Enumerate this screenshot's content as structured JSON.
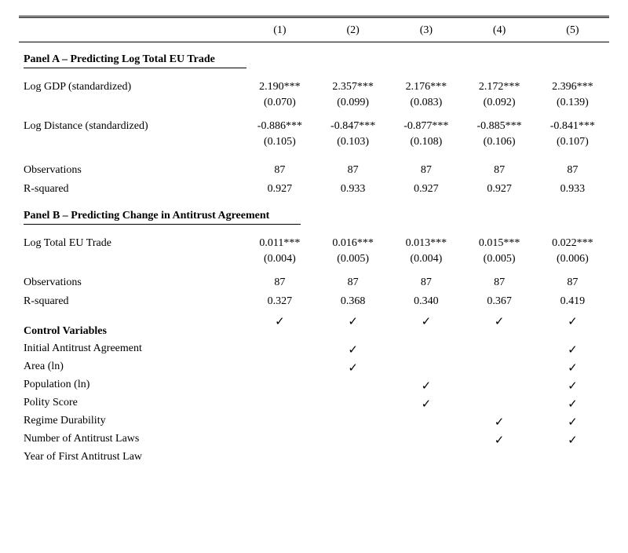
{
  "columns": {
    "c1": "(1)",
    "c2": "(2)",
    "c3": "(3)",
    "c4": "(4)",
    "c5": "(5)"
  },
  "panelA": {
    "title": "Panel A – Predicting Log Total EU Trade",
    "row1": {
      "label": "Log GDP (standardized)",
      "v1": "2.190***",
      "se1": "(0.070)",
      "v2": "2.357***",
      "se2": "(0.099)",
      "v3": "2.176***",
      "se3": "(0.083)",
      "v4": "2.172***",
      "se4": "(0.092)",
      "v5": "2.396***",
      "se5": "(0.139)"
    },
    "row2": {
      "label": "Log Distance (standardized)",
      "v1": "-0.886***",
      "se1": "(0.105)",
      "v2": "-0.847***",
      "se2": "(0.103)",
      "v3": "-0.877***",
      "se3": "(0.108)",
      "v4": "-0.885***",
      "se4": "(0.106)",
      "v5": "-0.841***",
      "se5": "(0.107)"
    },
    "obs": {
      "label": "Observations",
      "v1": "87",
      "v2": "87",
      "v3": "87",
      "v4": "87",
      "v5": "87"
    },
    "r2": {
      "label": "R-squared",
      "v1": "0.927",
      "v2": "0.933",
      "v3": "0.927",
      "v4": "0.927",
      "v5": "0.933"
    }
  },
  "panelB": {
    "title": "Panel B – Predicting Change in Antitrust Agreement",
    "row1": {
      "label": "Log Total EU Trade",
      "v1": "0.011***",
      "se1": "(0.004)",
      "v2": "0.016***",
      "se2": "(0.005)",
      "v3": "0.013***",
      "se3": "(0.004)",
      "v4": "0.015***",
      "se4": "(0.005)",
      "v5": "0.022***",
      "se5": "(0.006)"
    },
    "obs": {
      "label": "Observations",
      "v1": "87",
      "v2": "87",
      "v3": "87",
      "v4": "87",
      "v5": "87"
    },
    "r2": {
      "label": "R-squared",
      "v1": "0.327",
      "v2": "0.368",
      "v3": "0.340",
      "v4": "0.367",
      "v5": "0.419"
    }
  },
  "cv": {
    "title": "Control Variables",
    "check": "✓",
    "rows": {
      "r1": {
        "label": "Initial Antitrust Agreement",
        "c1": true,
        "c2": true,
        "c3": true,
        "c4": true,
        "c5": true
      },
      "r2": {
        "label": "Area (ln)",
        "c1": false,
        "c2": true,
        "c3": false,
        "c4": false,
        "c5": true
      },
      "r3": {
        "label": "Population (ln)",
        "c1": false,
        "c2": true,
        "c3": false,
        "c4": false,
        "c5": true
      },
      "r4": {
        "label": "Polity Score",
        "c1": false,
        "c2": false,
        "c3": true,
        "c4": false,
        "c5": true
      },
      "r5": {
        "label": "Regime Durability",
        "c1": false,
        "c2": false,
        "c3": true,
        "c4": false,
        "c5": true
      },
      "r6": {
        "label": "Number of Antitrust Laws",
        "c1": false,
        "c2": false,
        "c3": false,
        "c4": true,
        "c5": true
      },
      "r7": {
        "label": "Year of First Antitrust Law",
        "c1": false,
        "c2": false,
        "c3": false,
        "c4": true,
        "c5": true
      }
    }
  },
  "colors": {
    "text": "#000000",
    "background": "#ffffff",
    "rule": "#000000"
  }
}
